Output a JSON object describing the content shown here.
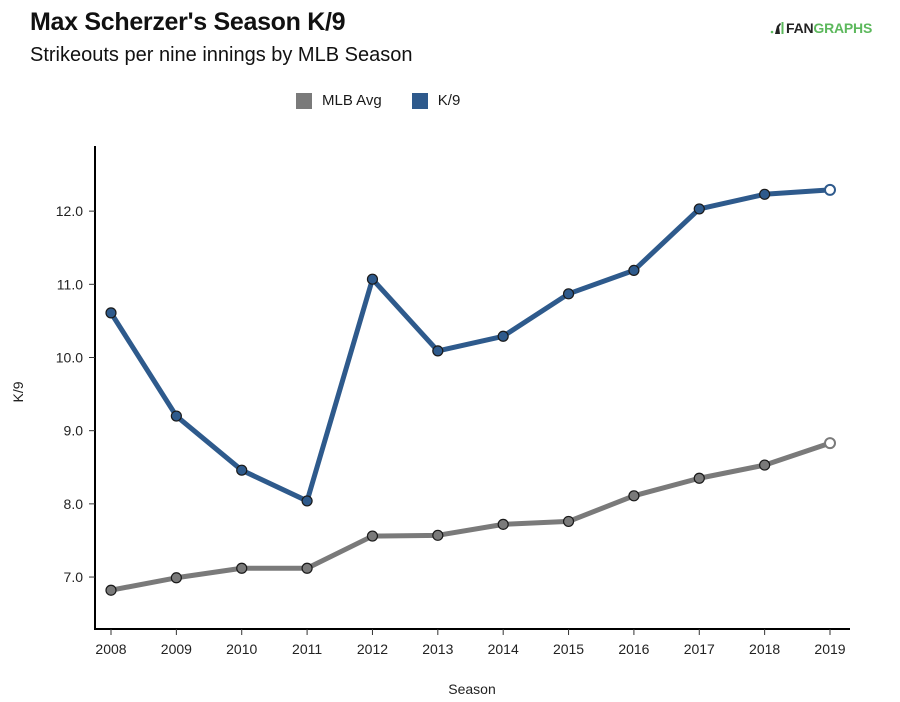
{
  "header": {
    "title": "Max Scherzer's Season K/9",
    "subtitle": "Strikeouts per nine innings by MLB Season",
    "logo_text_a": "FAN",
    "logo_text_b": "GRAPHS"
  },
  "colors": {
    "mlb_avg": "#7a7a7a",
    "k9": "#2e5a8c",
    "logo_green": "#5cb85c"
  },
  "chart_data": {
    "type": "line",
    "title": "Max Scherzer's Season K/9",
    "subtitle": "Strikeouts per nine innings by MLB Season",
    "xlabel": "Season",
    "ylabel": "K/9",
    "x": [
      "2008",
      "2009",
      "2010",
      "2011",
      "2012",
      "2013",
      "2014",
      "2015",
      "2016",
      "2017",
      "2018",
      "2019"
    ],
    "ylim": [
      6.29,
      12.89
    ],
    "yticks": [
      "7.0",
      "8.0",
      "9.0",
      "10.0",
      "11.0",
      "12.0"
    ],
    "grid": false,
    "legend_position": "top-center",
    "series": [
      {
        "name": "MLB Avg",
        "color": "#7a7a7a",
        "values": [
          6.82,
          6.99,
          7.12,
          7.12,
          7.56,
          7.57,
          7.72,
          7.76,
          8.11,
          8.35,
          8.53,
          8.83
        ]
      },
      {
        "name": "K/9",
        "color": "#2e5a8c",
        "values": [
          10.61,
          9.2,
          8.46,
          8.04,
          11.07,
          10.09,
          10.29,
          10.87,
          11.19,
          12.03,
          12.23,
          12.29
        ]
      }
    ]
  }
}
